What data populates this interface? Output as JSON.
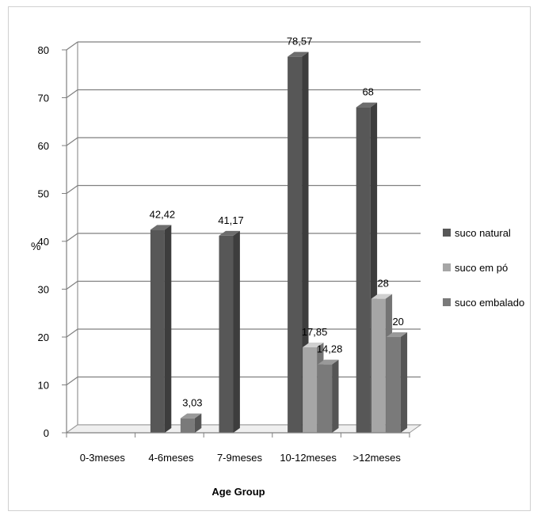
{
  "chart_data": {
    "type": "bar",
    "categories": [
      "0-3meses",
      "4-6meses",
      "7-9meses",
      "10-12meses",
      ">12meses"
    ],
    "series": [
      {
        "name": "suco natural",
        "color": "#575757",
        "values": [
          0,
          42.42,
          41.17,
          78.57,
          68
        ],
        "labels": [
          "",
          "42,42",
          "41,17",
          "78,57",
          "68"
        ]
      },
      {
        "name": "suco em pó",
        "color": "#a6a6a6",
        "values": [
          0,
          0,
          0,
          17.85,
          28
        ],
        "labels": [
          "",
          "",
          "",
          "17,85",
          "28"
        ]
      },
      {
        "name": "suco embalado",
        "color": "#7a7a7a",
        "values": [
          0,
          3.03,
          0,
          14.28,
          20
        ],
        "labels": [
          "",
          "3,03",
          "",
          "14,28",
          "20"
        ]
      }
    ],
    "ylim": [
      0,
      80
    ],
    "yticks": [
      0,
      10,
      20,
      30,
      40,
      50,
      60,
      70,
      80
    ],
    "ylabel": "%",
    "xlabel": "Age Group",
    "grid": true,
    "legend_position": "right",
    "three_d": true
  }
}
